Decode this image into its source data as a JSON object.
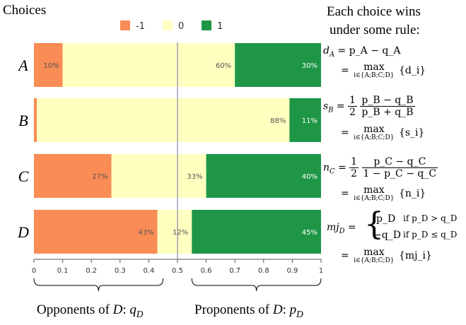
{
  "header": {
    "choices_label": "Choices",
    "rules_title_line1": "Each choice wins",
    "rules_title_line2": "under some rule:"
  },
  "colors": {
    "neg": "#FA8C55",
    "zero": "#FFFFC0",
    "pos": "#1E9646",
    "divider": "#7070A8"
  },
  "chart_data": {
    "type": "bar",
    "orientation": "horizontal-stacked",
    "categories": [
      "A",
      "B",
      "C",
      "D"
    ],
    "series": [
      {
        "name": "-1",
        "values": [
          0.1,
          0.01,
          0.27,
          0.43
        ],
        "labels": [
          "10%",
          "",
          "27%",
          "43%"
        ]
      },
      {
        "name": "0",
        "values": [
          0.6,
          0.88,
          0.33,
          0.12
        ],
        "labels": [
          "60%",
          "88%",
          "33%",
          "12%"
        ]
      },
      {
        "name": "1",
        "values": [
          0.3,
          0.11,
          0.4,
          0.45
        ],
        "labels": [
          "30%",
          "11%",
          "40%",
          "45%"
        ]
      }
    ],
    "xlim": [
      0,
      1
    ],
    "xticks": [
      "0",
      "0.1",
      "0.2",
      "0.3",
      "0.4",
      "0.5",
      "0.6",
      "0.7",
      "0.8",
      "0.9",
      "1"
    ],
    "reference_line": 0.5,
    "legend": [
      "-1",
      "0",
      "1"
    ],
    "legend_position": "top-center",
    "xlabel_left": "Opponents of D: q_D",
    "xlabel_right": "Proponents of D: p_D"
  },
  "bottom": {
    "opponents_prefix": "Opponents of ",
    "opponents_var": "D",
    "opponents_sep": ": ",
    "opponents_sym": "q",
    "opponents_sub": "D",
    "proponents_prefix": "Proponents of ",
    "proponents_var": "D",
    "proponents_sep": ": ",
    "proponents_sym": "p",
    "proponents_sub": "D"
  },
  "rules": {
    "maxsub": "i∈{A;B;C;D}",
    "max": "max",
    "dA_lhs": "d",
    "dA_sub": "A",
    "dA_rhs": "= p_A − q_A",
    "dA_max": "{d_i}",
    "sB_lhs": "s",
    "sB_sub": "B",
    "sB_half_num": "1",
    "sB_half_den": "2",
    "sB_num": "p_B − q_B",
    "sB_den": "p_B + q_B",
    "sB_max": "{s_i}",
    "nC_lhs": "n",
    "nC_sub": "C",
    "nC_half_num": "1",
    "nC_half_den": "2",
    "nC_num": "p_C − q_C",
    "nC_den": "1 − p_C − q_C",
    "nC_max": "{n_i}",
    "mjD_lhs": "mj",
    "mjD_sub": "D",
    "mjD_case1": "p_D",
    "mjD_cond1": "if p_D > q_D",
    "mjD_case2": "−q_D",
    "mjD_cond2": "if p_D ≤ q_D",
    "mjD_max": "{mj_i}"
  }
}
